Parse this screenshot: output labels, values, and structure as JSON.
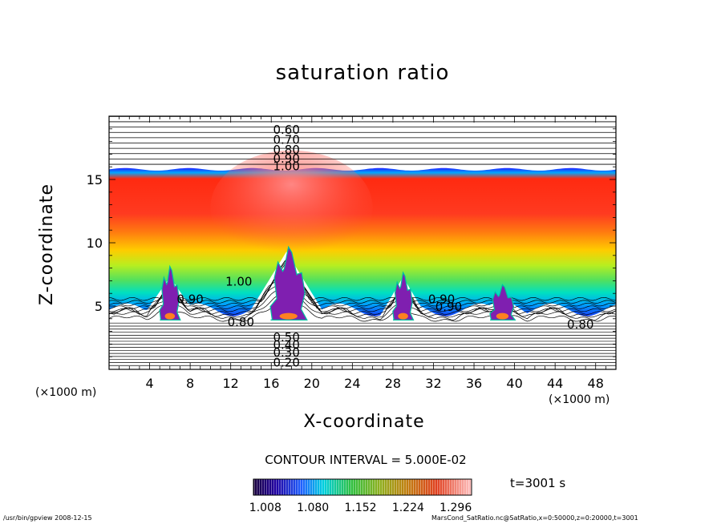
{
  "chart_data": {
    "type": "heatmap",
    "title": "saturation ratio",
    "xlabel": "X-coordinate",
    "ylabel": "Z-coordinate",
    "x_unit_left": "(×1000 m)",
    "x_unit_right": "(×1000 m)",
    "xlim": [
      0,
      50
    ],
    "ylim": [
      0,
      20
    ],
    "x_ticks": [
      4,
      8,
      12,
      16,
      20,
      24,
      28,
      32,
      36,
      40,
      44,
      48
    ],
    "y_ticks": [
      5,
      10,
      15
    ],
    "contour_labels": [
      {
        "text": "0.60",
        "x": 17.5,
        "y": 19.0
      },
      {
        "text": "0.70",
        "x": 17.5,
        "y": 18.2
      },
      {
        "text": "0.80",
        "x": 17.5,
        "y": 17.4
      },
      {
        "text": "0.90",
        "x": 17.5,
        "y": 16.7
      },
      {
        "text": "1.00",
        "x": 17.5,
        "y": 16.1
      },
      {
        "text": "1.00",
        "x": 12.8,
        "y": 7.0
      },
      {
        "text": "0.90",
        "x": 8.0,
        "y": 5.6
      },
      {
        "text": "0.80",
        "x": 13.0,
        "y": 3.8
      },
      {
        "text": "0.90",
        "x": 32.8,
        "y": 5.6
      },
      {
        "text": "0.90",
        "x": 33.5,
        "y": 5.0
      },
      {
        "text": "0.80",
        "x": 46.5,
        "y": 3.6
      },
      {
        "text": "0.50",
        "x": 17.5,
        "y": 2.6
      },
      {
        "text": "0.40",
        "x": 17.5,
        "y": 2.0
      },
      {
        "text": "0.30",
        "x": 17.5,
        "y": 1.4
      },
      {
        "text": "0.20",
        "x": 17.5,
        "y": 0.6
      }
    ],
    "contour_interval": "CONTOUR INTERVAL = 5.000E-02",
    "colorbar_ticks": [
      "1.008",
      "1.080",
      "1.152",
      "1.224",
      "1.296"
    ],
    "colorbar_range": [
      0.99,
      1.32
    ],
    "time_label": "t=3001 s"
  },
  "footer": {
    "program": "/usr/bin/gpview   2008-12-15",
    "source": "MarsCond_SatRatio.nc@SatRatio,x=0:50000,z=0:20000,t=3001"
  },
  "colors": {
    "background": "#ffffff",
    "foreground": "#000000",
    "cloud": "#7f1fb0"
  }
}
